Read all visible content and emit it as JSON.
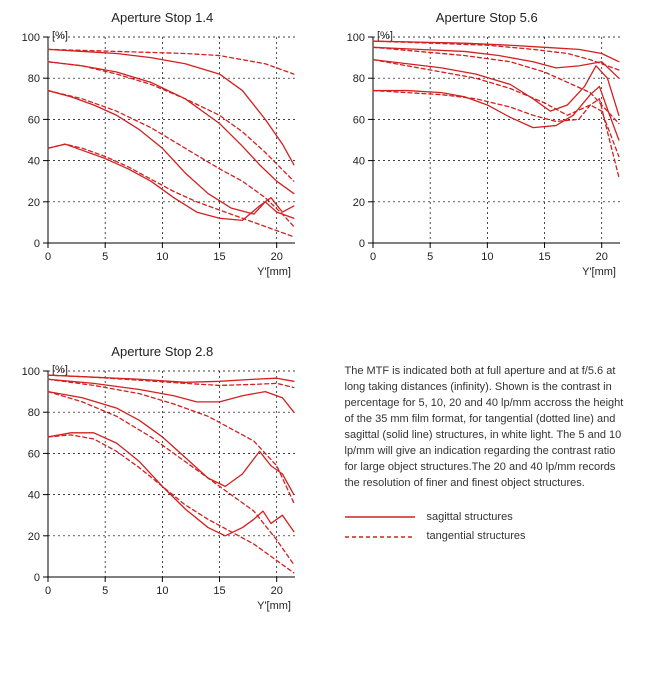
{
  "colors": {
    "line": "#d32020",
    "axis": "#000000",
    "grid": "#000000",
    "text": "#222222",
    "bg": "#ffffff"
  },
  "axis": {
    "xlim": [
      0,
      21.6
    ],
    "ylim": [
      0,
      100
    ],
    "xticks": [
      0,
      5,
      10,
      15,
      20
    ],
    "yticks": [
      0,
      20,
      40,
      60,
      80,
      100
    ],
    "yunit": "[%]",
    "xunit": "Y'[mm]",
    "tick_fontsize": 11,
    "unit_fontsize": 11,
    "line_width_solid": 1.3,
    "line_width_dash": 1.3,
    "dash_pattern": "4 3",
    "grid_dash": "2 3",
    "grid_width": 0.7
  },
  "charts": [
    {
      "id": "chart-f14",
      "title": "Aperture Stop 1.4",
      "sagittal": [
        [
          [
            0,
            94
          ],
          [
            3,
            93
          ],
          [
            6,
            92
          ],
          [
            9,
            90
          ],
          [
            12,
            87
          ],
          [
            15,
            82
          ],
          [
            17,
            74
          ],
          [
            19,
            60
          ],
          [
            20.5,
            48
          ],
          [
            21.5,
            38
          ]
        ],
        [
          [
            0,
            88
          ],
          [
            3,
            86
          ],
          [
            6,
            83
          ],
          [
            9,
            78
          ],
          [
            12,
            70
          ],
          [
            15,
            58
          ],
          [
            17,
            47
          ],
          [
            18.5,
            38
          ],
          [
            20,
            30
          ],
          [
            21.5,
            24
          ]
        ],
        [
          [
            0,
            74
          ],
          [
            2,
            71
          ],
          [
            4,
            67
          ],
          [
            6,
            62
          ],
          [
            8,
            55
          ],
          [
            10,
            46
          ],
          [
            12,
            34
          ],
          [
            14,
            24
          ],
          [
            16,
            17
          ],
          [
            18,
            14
          ],
          [
            19,
            20
          ],
          [
            20,
            15
          ],
          [
            21.5,
            12
          ]
        ],
        [
          [
            0,
            46
          ],
          [
            1.5,
            48
          ],
          [
            3,
            45
          ],
          [
            5,
            41
          ],
          [
            7,
            36
          ],
          [
            9,
            30
          ],
          [
            11,
            22
          ],
          [
            13,
            15
          ],
          [
            15,
            12
          ],
          [
            17,
            11
          ],
          [
            18.5,
            18
          ],
          [
            19.5,
            22
          ],
          [
            20.5,
            15
          ],
          [
            21.5,
            18
          ]
        ]
      ],
      "tangential": [
        [
          [
            0,
            94
          ],
          [
            3,
            93.5
          ],
          [
            6,
            93
          ],
          [
            9,
            92.5
          ],
          [
            12,
            92
          ],
          [
            15,
            91
          ],
          [
            17,
            89
          ],
          [
            19,
            87
          ],
          [
            21.5,
            82
          ]
        ],
        [
          [
            0,
            88
          ],
          [
            3,
            86
          ],
          [
            6,
            82
          ],
          [
            9,
            77
          ],
          [
            12,
            70
          ],
          [
            15,
            62
          ],
          [
            17,
            54
          ],
          [
            19,
            44
          ],
          [
            21.5,
            30
          ]
        ],
        [
          [
            0,
            74
          ],
          [
            3,
            70
          ],
          [
            6,
            64
          ],
          [
            9,
            56
          ],
          [
            12,
            46
          ],
          [
            15,
            36
          ],
          [
            17,
            30
          ],
          [
            19,
            22
          ],
          [
            20.5,
            14
          ],
          [
            21.5,
            8
          ]
        ],
        [
          [
            0,
            46
          ],
          [
            1.5,
            48
          ],
          [
            3,
            46
          ],
          [
            5,
            42
          ],
          [
            7,
            37
          ],
          [
            9,
            31
          ],
          [
            11,
            25
          ],
          [
            13,
            20
          ],
          [
            15,
            16
          ],
          [
            17,
            12
          ],
          [
            19,
            8
          ],
          [
            21.5,
            3
          ]
        ]
      ]
    },
    {
      "id": "chart-f56",
      "title": "Aperture Stop 5.6",
      "sagittal": [
        [
          [
            0,
            98
          ],
          [
            4,
            97.5
          ],
          [
            8,
            97
          ],
          [
            12,
            96
          ],
          [
            15,
            95
          ],
          [
            18,
            94
          ],
          [
            20,
            92
          ],
          [
            21.5,
            88
          ]
        ],
        [
          [
            0,
            95
          ],
          [
            4,
            94
          ],
          [
            8,
            93
          ],
          [
            11,
            91
          ],
          [
            14,
            88
          ],
          [
            16,
            85
          ],
          [
            18,
            86
          ],
          [
            20,
            88
          ],
          [
            21.5,
            80
          ]
        ],
        [
          [
            0,
            89
          ],
          [
            3,
            87
          ],
          [
            6,
            85
          ],
          [
            9,
            82
          ],
          [
            12,
            77
          ],
          [
            14,
            70
          ],
          [
            15.5,
            64
          ],
          [
            17,
            67
          ],
          [
            18.5,
            76
          ],
          [
            19.5,
            86
          ],
          [
            20.5,
            80
          ],
          [
            21.5,
            62
          ]
        ],
        [
          [
            0,
            74
          ],
          [
            3,
            74
          ],
          [
            6,
            73
          ],
          [
            8,
            71
          ],
          [
            10,
            67
          ],
          [
            12,
            61
          ],
          [
            14,
            56
          ],
          [
            16,
            57
          ],
          [
            17.5,
            62
          ],
          [
            19,
            72
          ],
          [
            19.8,
            76
          ],
          [
            20.5,
            65
          ],
          [
            21.5,
            50
          ]
        ]
      ],
      "tangential": [
        [
          [
            0,
            98
          ],
          [
            5,
            97
          ],
          [
            10,
            96
          ],
          [
            14,
            94
          ],
          [
            17,
            92
          ],
          [
            19,
            89
          ],
          [
            21.5,
            84
          ]
        ],
        [
          [
            0,
            95
          ],
          [
            4,
            93
          ],
          [
            8,
            91
          ],
          [
            12,
            88
          ],
          [
            15,
            83
          ],
          [
            17,
            78
          ],
          [
            19,
            73
          ],
          [
            21.5,
            58
          ]
        ],
        [
          [
            0,
            89
          ],
          [
            3,
            86
          ],
          [
            6,
            83
          ],
          [
            9,
            80
          ],
          [
            12,
            75
          ],
          [
            15,
            68
          ],
          [
            17,
            62
          ],
          [
            19,
            67
          ],
          [
            20,
            64
          ],
          [
            21.5,
            42
          ]
        ],
        [
          [
            0,
            74
          ],
          [
            3,
            73
          ],
          [
            6,
            72
          ],
          [
            9,
            70
          ],
          [
            12,
            66
          ],
          [
            14,
            62
          ],
          [
            16,
            59
          ],
          [
            18,
            60
          ],
          [
            19,
            67
          ],
          [
            19.8,
            70
          ],
          [
            20.5,
            54
          ],
          [
            21.5,
            32
          ]
        ]
      ]
    },
    {
      "id": "chart-f28",
      "title": "Aperture Stop 2.8",
      "sagittal": [
        [
          [
            0,
            98
          ],
          [
            4,
            97
          ],
          [
            8,
            96
          ],
          [
            12,
            94.5
          ],
          [
            15,
            95
          ],
          [
            18,
            96
          ],
          [
            20,
            96.5
          ],
          [
            21.5,
            95
          ]
        ],
        [
          [
            0,
            96
          ],
          [
            4,
            94
          ],
          [
            8,
            91
          ],
          [
            11,
            88
          ],
          [
            13,
            85
          ],
          [
            15,
            85
          ],
          [
            17,
            88
          ],
          [
            19,
            90
          ],
          [
            20.5,
            87
          ],
          [
            21.5,
            80
          ]
        ],
        [
          [
            0,
            90
          ],
          [
            3,
            87
          ],
          [
            6,
            82
          ],
          [
            8,
            76
          ],
          [
            10,
            68
          ],
          [
            12,
            58
          ],
          [
            14,
            48
          ],
          [
            15.5,
            44
          ],
          [
            17,
            50
          ],
          [
            18.5,
            61
          ],
          [
            19.5,
            54
          ],
          [
            20.5,
            50
          ],
          [
            21.5,
            40
          ]
        ],
        [
          [
            0,
            68
          ],
          [
            2,
            70
          ],
          [
            4,
            70
          ],
          [
            6,
            65
          ],
          [
            8,
            56
          ],
          [
            10,
            44
          ],
          [
            12,
            33
          ],
          [
            14,
            24
          ],
          [
            15.5,
            20
          ],
          [
            17,
            24
          ],
          [
            18,
            28
          ],
          [
            18.8,
            32
          ],
          [
            19.5,
            26
          ],
          [
            20.5,
            30
          ],
          [
            21.5,
            22
          ]
        ]
      ],
      "tangential": [
        [
          [
            0,
            98
          ],
          [
            4,
            97
          ],
          [
            8,
            95.5
          ],
          [
            12,
            94
          ],
          [
            15,
            93
          ],
          [
            18,
            93.5
          ],
          [
            20,
            94
          ],
          [
            21.5,
            92
          ]
        ],
        [
          [
            0,
            96
          ],
          [
            4,
            93
          ],
          [
            8,
            89
          ],
          [
            11,
            84
          ],
          [
            14,
            78
          ],
          [
            16,
            72
          ],
          [
            18,
            66
          ],
          [
            20,
            54
          ],
          [
            21.5,
            36
          ]
        ],
        [
          [
            0,
            90
          ],
          [
            3,
            85
          ],
          [
            6,
            78
          ],
          [
            9,
            68
          ],
          [
            12,
            56
          ],
          [
            14.5,
            46
          ],
          [
            16,
            40
          ],
          [
            18,
            32
          ],
          [
            20,
            18
          ],
          [
            21.5,
            6
          ]
        ],
        [
          [
            0,
            68
          ],
          [
            2,
            69
          ],
          [
            4,
            67
          ],
          [
            6,
            61
          ],
          [
            8,
            53
          ],
          [
            10,
            44
          ],
          [
            12,
            35
          ],
          [
            14,
            28
          ],
          [
            16,
            22
          ],
          [
            18,
            16
          ],
          [
            20,
            8
          ],
          [
            21.5,
            2
          ]
        ]
      ]
    }
  ],
  "description": "The MTF is indicated both at full aperture and at f/5.6 at long taking distances (infinity). Shown is the contrast in percentage for 5, 10, 20 and 40 lp/mm accross the height of the 35 mm film format, for tangential (dotted line) and sagittal (solid line) structures, in white light. The 5 and 10 lp/mm will give an indication regarding the contrast ratio for large object structures.The 20 and 40 lp/mm records the resolution of finer and finest object structures.",
  "legend": {
    "sagittal": "sagittal structures",
    "tangential": "tangential structures"
  }
}
